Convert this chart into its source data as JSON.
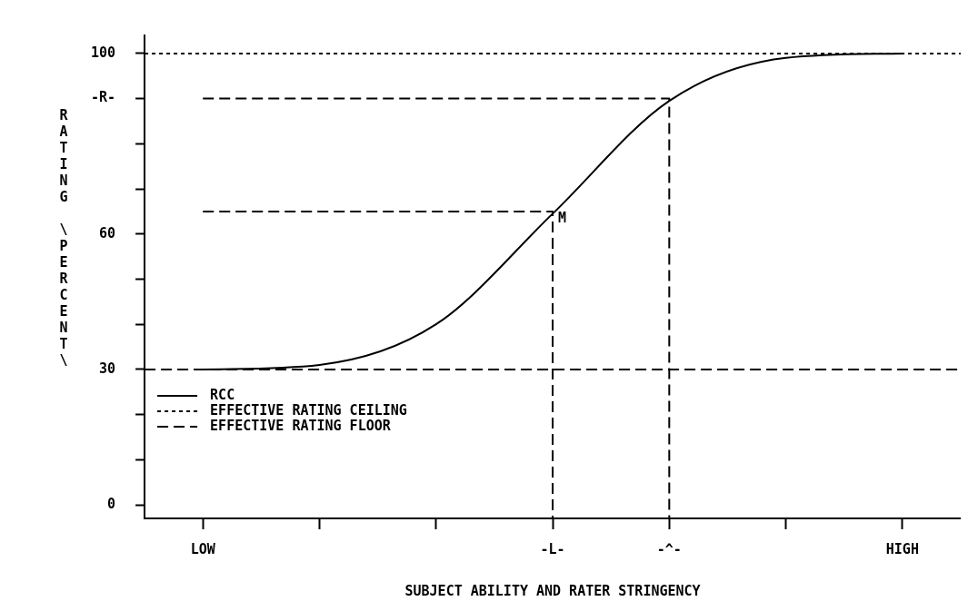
{
  "chart_data": {
    "type": "line",
    "xlabel": "SUBJECT ABILITY AND RATER STRINGENCY",
    "ylabel": "RATING \\PERCENT\\",
    "categories": [
      "LOW",
      null,
      null,
      "-L-",
      "-^-",
      null,
      "HIGH"
    ],
    "ylim": [
      -3,
      104
    ],
    "yticks": [
      0,
      {
        "value": 10,
        "label": null
      },
      {
        "value": 20,
        "label": null
      },
      30,
      {
        "value": 40,
        "label": null
      },
      {
        "value": 50,
        "label": null
      },
      60,
      {
        "value": 70,
        "label": null
      },
      {
        "value": 80,
        "label": null
      },
      {
        "value": 90,
        "label": "-R-"
      },
      100
    ],
    "legend": "bottom left",
    "series": [
      {
        "name": "RCC",
        "color": "#000000",
        "line_style": "solid",
        "values": [
          30,
          31,
          40,
          64.5,
          89.5,
          99,
          100
        ]
      },
      {
        "color": "#000000",
        "line_style": "dashed",
        "x": [
          "LOW",
          "-L-",
          "-L-"
        ],
        "values": [
          65,
          65,
          -3
        ]
      },
      {
        "color": "#000000",
        "line_style": "dashed",
        "x": [
          "LOW",
          "-^-",
          "-^-"
        ],
        "values": [
          90,
          90,
          -3
        ]
      }
    ],
    "ref_lines": [
      {
        "axis": "y",
        "value": 100,
        "label": "EFFECTIVE RATING CEILING",
        "line_style": "dotted",
        "color": "#000000"
      },
      {
        "axis": "y",
        "value": 30,
        "label": "EFFECTIVE RATING FLOOR",
        "line_style": "dashed",
        "color": "#000000"
      }
    ],
    "annotations": [
      {
        "text": "M",
        "x": "-L-",
        "y": 65
      }
    ]
  }
}
